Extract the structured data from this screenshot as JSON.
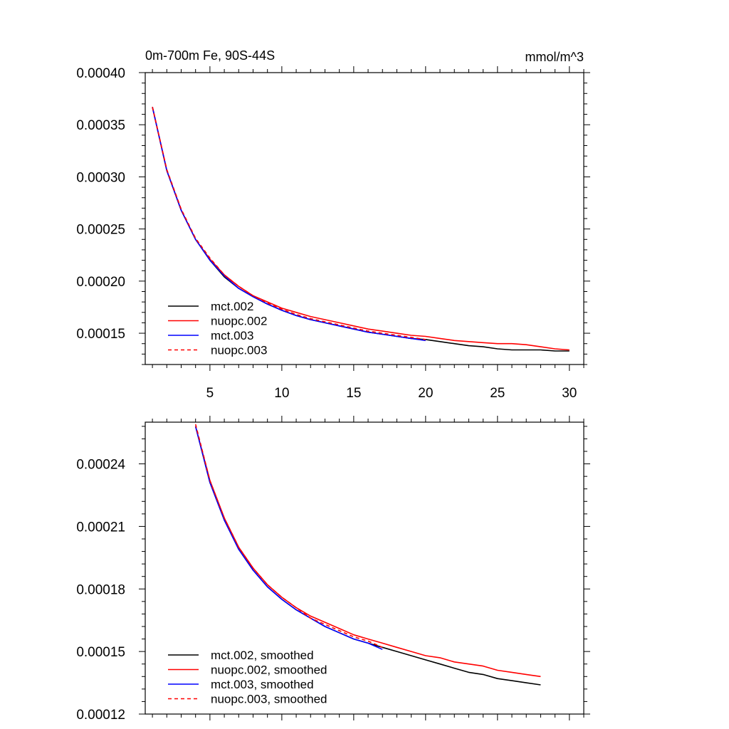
{
  "chart_data": [
    {
      "type": "line",
      "title": "0m-700m Fe, 90S-44S",
      "units": "mmol/m^3",
      "xlabel": "",
      "ylabel": "",
      "xlim": [
        0.5,
        31
      ],
      "ylim": [
        0.00012,
        0.0004
      ],
      "xticks": [
        5,
        10,
        15,
        20,
        25,
        30
      ],
      "xtick_labels": [
        "5",
        "10",
        "15",
        "20",
        "25",
        "30"
      ],
      "yticks": [
        0.00015,
        0.0002,
        0.00025,
        0.0003,
        0.00035,
        0.0004
      ],
      "ytick_labels": [
        "0.00015",
        "0.00020",
        "0.00025",
        "0.00030",
        "0.00035",
        "0.00040"
      ],
      "legend_position": "bottom-left",
      "series": [
        {
          "name": "mct.002",
          "color": "#000000",
          "dash": "solid",
          "x": [
            1,
            2,
            3,
            4,
            5,
            6,
            7,
            8,
            9,
            10,
            11,
            12,
            13,
            14,
            15,
            16,
            17,
            18,
            19,
            20,
            21,
            22,
            23,
            24,
            25,
            26,
            27,
            28,
            29,
            30
          ],
          "values": [
            0.000367,
            0.000306,
            0.000268,
            0.00024,
            0.00022,
            0.000204,
            0.000193,
            0.000185,
            0.000178,
            0.000172,
            0.000167,
            0.000163,
            0.00016,
            0.000157,
            0.000154,
            0.000151,
            0.000149,
            0.000147,
            0.000145,
            0.000144,
            0.000142,
            0.00014,
            0.000138,
            0.000137,
            0.000135,
            0.000134,
            0.000134,
            0.000134,
            0.000133,
            0.000133
          ]
        },
        {
          "name": "nuopc.002",
          "color": "#ff0000",
          "dash": "solid",
          "x": [
            1,
            2,
            3,
            4,
            5,
            6,
            7,
            8,
            9,
            10,
            11,
            12,
            13,
            14,
            15,
            16,
            17,
            18,
            19,
            20,
            21,
            22,
            23,
            24,
            25,
            26,
            27,
            28,
            29,
            30
          ],
          "values": [
            0.000367,
            0.000306,
            0.000268,
            0.00024,
            0.000221,
            0.000206,
            0.000195,
            0.000186,
            0.00018,
            0.000174,
            0.00017,
            0.000166,
            0.000163,
            0.00016,
            0.000157,
            0.000154,
            0.000152,
            0.00015,
            0.000148,
            0.000147,
            0.000145,
            0.000143,
            0.000142,
            0.000141,
            0.00014,
            0.00014,
            0.000139,
            0.000137,
            0.000135,
            0.000134
          ]
        },
        {
          "name": "mct.003",
          "color": "#0000ff",
          "dash": "solid",
          "x": [
            1,
            2,
            3,
            4,
            5,
            6,
            7,
            8,
            9,
            10,
            11,
            12,
            13,
            14,
            15,
            16,
            17,
            18,
            19,
            20
          ],
          "values": [
            0.000367,
            0.000306,
            0.000268,
            0.00024,
            0.00022,
            0.000205,
            0.000193,
            0.000185,
            0.000178,
            0.000172,
            0.000167,
            0.000163,
            0.00016,
            0.000157,
            0.000154,
            0.000151,
            0.000149,
            0.000147,
            0.000145,
            0.000143
          ]
        },
        {
          "name": "nuopc.003",
          "color": "#ff0000",
          "dash": "dashed",
          "x": [
            1,
            2,
            3,
            4,
            5,
            6,
            7,
            8,
            9,
            10,
            11,
            12,
            13,
            14,
            15,
            16,
            17,
            18,
            19,
            20
          ],
          "values": [
            0.000367,
            0.000307,
            0.000269,
            0.000241,
            0.000222,
            0.000206,
            0.000195,
            0.000186,
            0.000179,
            0.000173,
            0.000168,
            0.000164,
            0.000161,
            0.000158,
            0.000155,
            0.000152,
            0.00015,
            0.000148,
            0.000146,
            0.000144
          ]
        }
      ]
    },
    {
      "type": "line",
      "title": "",
      "xlabel": "",
      "ylabel": "",
      "xlim": [
        0.5,
        31
      ],
      "ylim": [
        0.00012,
        0.00026
      ],
      "xticks": [
        5,
        10,
        15,
        20,
        25,
        30
      ],
      "yticks": [
        0.00012,
        0.00015,
        0.00018,
        0.00021,
        0.00024
      ],
      "ytick_labels": [
        "0.00012",
        "0.00015",
        "0.00018",
        "0.00021",
        "0.00024"
      ],
      "legend_position": "bottom-left",
      "series": [
        {
          "name": "mct.002, smoothed",
          "color": "#000000",
          "dash": "solid",
          "x": [
            4,
            5,
            6,
            7,
            8,
            9,
            10,
            11,
            12,
            13,
            14,
            15,
            16,
            17,
            18,
            19,
            20,
            21,
            22,
            23,
            24,
            25,
            26,
            27,
            28
          ],
          "values": [
            0.000258,
            0.000231,
            0.000213,
            0.000199,
            0.000189,
            0.000181,
            0.000175,
            0.00017,
            0.000166,
            0.000162,
            0.000159,
            0.000156,
            0.000154,
            0.000152,
            0.00015,
            0.000148,
            0.000146,
            0.000144,
            0.000142,
            0.00014,
            0.000139,
            0.000137,
            0.000136,
            0.000135,
            0.000134
          ]
        },
        {
          "name": "nuopc.002, smoothed",
          "color": "#ff0000",
          "dash": "solid",
          "x": [
            4,
            5,
            6,
            7,
            8,
            9,
            10,
            11,
            12,
            13,
            14,
            15,
            16,
            17,
            18,
            19,
            20,
            21,
            22,
            23,
            24,
            25,
            26,
            27,
            28
          ],
          "values": [
            0.000258,
            0.000232,
            0.000214,
            0.0002,
            0.00019,
            0.000182,
            0.000176,
            0.000171,
            0.000167,
            0.000164,
            0.000161,
            0.000158,
            0.000156,
            0.000154,
            0.000152,
            0.00015,
            0.000148,
            0.000147,
            0.000145,
            0.000144,
            0.000143,
            0.000141,
            0.00014,
            0.000139,
            0.000138
          ]
        },
        {
          "name": "mct.003, smoothed",
          "color": "#0000ff",
          "dash": "solid",
          "x": [
            4,
            5,
            6,
            7,
            8,
            9,
            10,
            11,
            12,
            13,
            14,
            15,
            16,
            17
          ],
          "values": [
            0.000258,
            0.000231,
            0.000213,
            0.000199,
            0.000189,
            0.000181,
            0.000175,
            0.00017,
            0.000166,
            0.000162,
            0.000159,
            0.000156,
            0.000154,
            0.000151
          ]
        },
        {
          "name": "nuopc.003, smoothed",
          "color": "#ff0000",
          "dash": "dashed",
          "x": [
            4,
            5,
            6,
            7,
            8,
            9,
            10,
            11,
            12,
            13,
            14,
            15,
            16,
            17
          ],
          "values": [
            0.000259,
            0.000232,
            0.000214,
            0.0002,
            0.00019,
            0.000182,
            0.000176,
            0.000171,
            0.000166,
            0.000163,
            0.00016,
            0.000157,
            0.000155,
            0.000152
          ]
        }
      ]
    }
  ]
}
